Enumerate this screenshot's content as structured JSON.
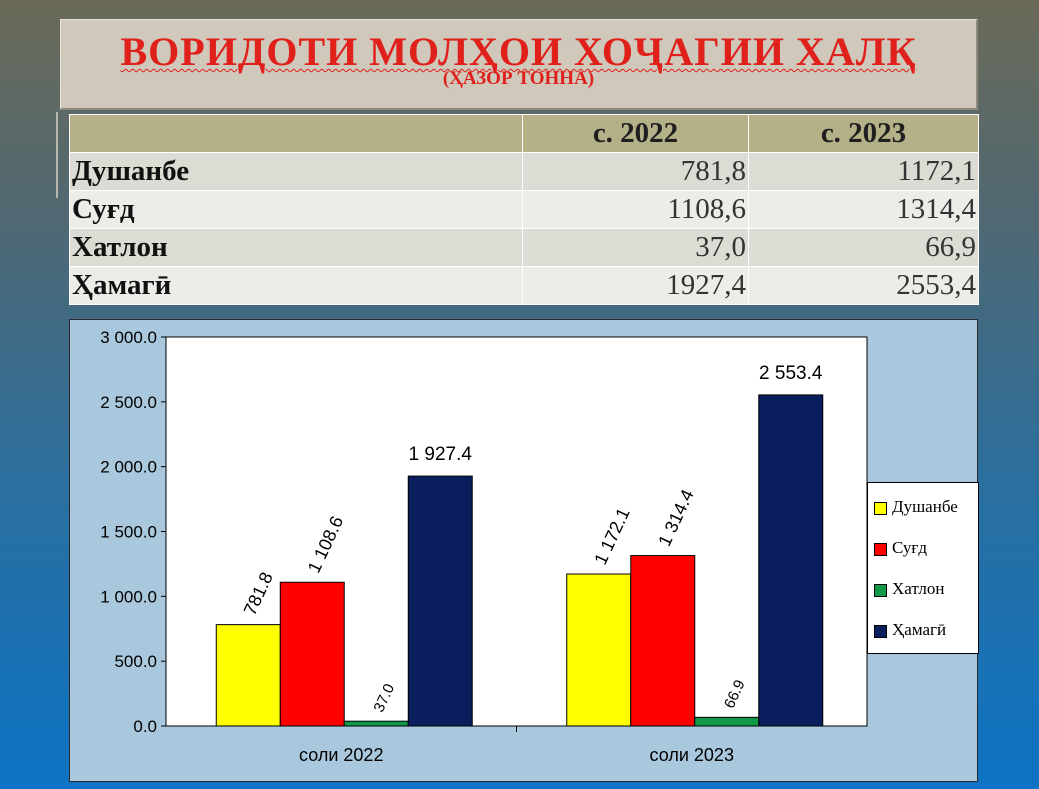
{
  "title": "ВОРИДОТИ МОЛҲОИ ХОҶАГИИ ХАЛҚ",
  "subtitle": "(ҲАЗОР ТОННА)",
  "table": {
    "headers": [
      "",
      "с. 2022",
      "с. 2023"
    ],
    "rows": [
      {
        "label": "Душанбе",
        "values": [
          "781,8",
          "1172,1"
        ]
      },
      {
        "label": "Суғд",
        "values": [
          "1108,6",
          "1314,4"
        ]
      },
      {
        "label": "Хатлон",
        "values": [
          "37,0",
          "66,9"
        ]
      },
      {
        "label": "Ҳамагӣ",
        "values": [
          "1927,4",
          "2553,4"
        ]
      }
    ]
  },
  "chart_data": {
    "type": "bar",
    "categories": [
      "соли 2022",
      "соли 2023"
    ],
    "series": [
      {
        "name": "Душанбе",
        "values": [
          781.8,
          1172.1
        ],
        "color": "#ffff00",
        "labels": [
          "781.8",
          "1 172.1"
        ]
      },
      {
        "name": "Суғд",
        "values": [
          1108.6,
          1314.4
        ],
        "color": "#ff0000",
        "labels": [
          "1 108.6",
          "1 314.4"
        ]
      },
      {
        "name": "Хатлон",
        "values": [
          37.0,
          66.9
        ],
        "color": "#109a48",
        "labels": [
          "37.0",
          "66.9"
        ]
      },
      {
        "name": "Ҳамагӣ",
        "values": [
          1927.4,
          2553.4
        ],
        "color": "#0a1e5e",
        "labels": [
          "1 927.4",
          "2 553.4"
        ]
      }
    ],
    "yticks": [
      "0.0",
      "500.0",
      "1 000.0",
      "1 500.0",
      "2 000.0",
      "2 500.0",
      "3 000.0"
    ],
    "ylim": [
      0,
      3000
    ],
    "grid": false,
    "legend": "right"
  }
}
